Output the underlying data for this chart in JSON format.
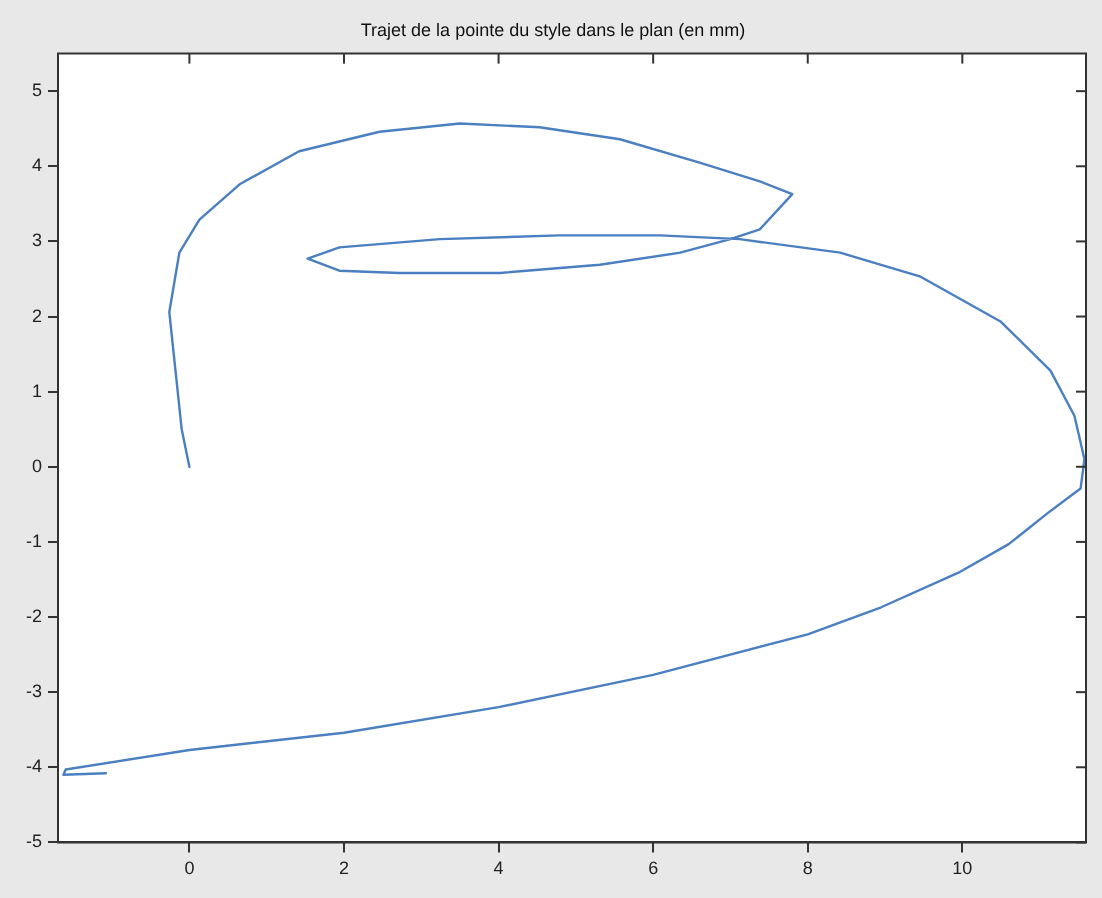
{
  "chart_data": {
    "type": "line",
    "title": "Trajet de la pointe du style dans le plan (en mm)",
    "xlim": [
      -1.7,
      11.6
    ],
    "ylim": [
      -5,
      5.5
    ],
    "xticks": [
      0,
      2,
      4,
      6,
      8,
      10
    ],
    "yticks": [
      -5,
      -4,
      -3,
      -2,
      -1,
      0,
      1,
      2,
      3,
      4,
      5
    ],
    "grid": false,
    "legend": false,
    "marker": "none",
    "line_style": "solid",
    "series": [
      {
        "color": "#4a7fc1",
        "x": [
          0,
          -0.1,
          -0.18,
          -0.26,
          -0.13,
          0.13,
          0.65,
          1.42,
          2.46,
          3.5,
          4.53,
          5.57,
          6.6,
          7.38,
          7.8,
          7.38,
          7,
          6.35,
          5.31,
          4.02,
          2.72,
          1.94,
          1.53,
          1.94,
          3.24,
          4.79,
          6.09,
          7.12,
          8.42,
          9.46,
          10.5,
          11.14,
          11.45,
          11.58,
          11.53,
          11.1,
          10.6,
          9.95,
          8.95,
          8,
          6,
          4,
          2,
          0,
          -1.6,
          -1.63,
          -1.08
        ],
        "values": [
          0,
          0.5,
          1.28,
          2.06,
          2.85,
          3.29,
          3.76,
          4.2,
          4.46,
          4.57,
          4.52,
          4.36,
          4.05,
          3.8,
          3.63,
          3.16,
          3.03,
          2.85,
          2.69,
          2.58,
          2.58,
          2.61,
          2.77,
          2.92,
          3.03,
          3.08,
          3.08,
          3.03,
          2.85,
          2.53,
          1.93,
          1.28,
          0.68,
          0.1,
          -0.29,
          -0.62,
          -1.03,
          -1.41,
          -1.87,
          -2.23,
          -2.77,
          -3.2,
          -3.54,
          -3.77,
          -4.03,
          -4.1,
          -4.08
        ]
      }
    ]
  }
}
